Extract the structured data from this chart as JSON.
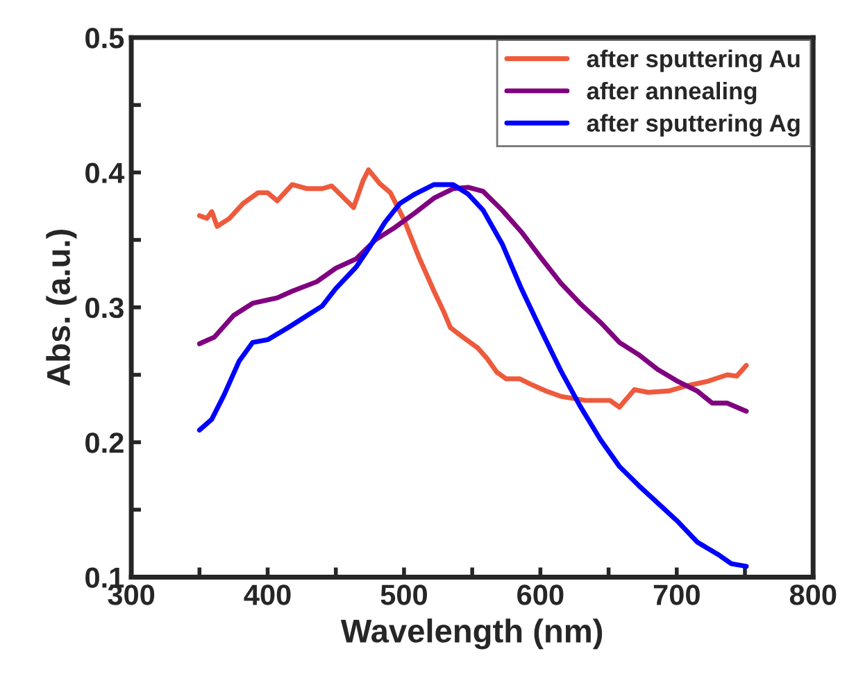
{
  "chart_data": {
    "type": "line",
    "xlabel": "Wavelength (nm)",
    "ylabel": "Abs. (a.u.)",
    "xlim": [
      300,
      800
    ],
    "ylim": [
      0.1,
      0.5
    ],
    "xticks": [
      300,
      {
        "value": 350,
        "label": null
      },
      400,
      {
        "value": 450,
        "label": null
      },
      500,
      {
        "value": 550,
        "label": null
      },
      600,
      {
        "value": 650,
        "label": null
      },
      700,
      {
        "value": 750,
        "label": null
      },
      800
    ],
    "yticks": [
      0.1,
      {
        "value": 0.15,
        "label": null
      },
      0.2,
      {
        "value": 0.25,
        "label": null
      },
      0.3,
      {
        "value": 0.35,
        "label": null
      },
      0.4,
      {
        "value": 0.45,
        "label": null
      },
      0.5
    ],
    "grid": false,
    "legend": "top right",
    "line_style": "solid",
    "series": [
      {
        "name": "after sputtering Au",
        "color": "#ee5a3c",
        "x": [
          350,
          355.5,
          359,
          363,
          372,
          382,
          393,
          400,
          407,
          418,
          429,
          440,
          447,
          456,
          463,
          470,
          474,
          482,
          490,
          500,
          511,
          522,
          529,
          534,
          543,
          554,
          561,
          568,
          575,
          585,
          593,
          604,
          615,
          633,
          651,
          658,
          669,
          679,
          694,
          708,
          722,
          737,
          744,
          751
        ],
        "values": [
          0.368,
          0.366,
          0.371,
          0.36,
          0.366,
          0.377,
          0.385,
          0.385,
          0.379,
          0.391,
          0.388,
          0.388,
          0.39,
          0.381,
          0.374,
          0.394,
          0.402,
          0.392,
          0.385,
          0.365,
          0.337,
          0.312,
          0.297,
          0.285,
          0.278,
          0.27,
          0.262,
          0.252,
          0.247,
          0.247,
          0.243,
          0.238,
          0.234,
          0.231,
          0.231,
          0.226,
          0.239,
          0.237,
          0.238,
          0.242,
          0.245,
          0.25,
          0.249,
          0.257
        ]
      },
      {
        "name": "after annealing",
        "color": "#800080",
        "x": [
          350,
          361,
          375,
          389,
          407,
          418,
          436,
          450,
          465,
          479,
          493,
          508,
          522,
          536,
          547,
          558,
          572,
          586,
          601,
          615,
          629,
          644,
          658,
          672,
          686,
          701,
          715,
          726,
          737,
          751
        ],
        "values": [
          0.273,
          0.278,
          0.294,
          0.303,
          0.307,
          0.312,
          0.319,
          0.329,
          0.336,
          0.35,
          0.359,
          0.37,
          0.381,
          0.388,
          0.389,
          0.386,
          0.372,
          0.356,
          0.336,
          0.318,
          0.303,
          0.289,
          0.274,
          0.265,
          0.254,
          0.245,
          0.238,
          0.229,
          0.229,
          0.223
        ]
      },
      {
        "name": "after sputtering Ag",
        "color": "#0000ff",
        "x": [
          350,
          359,
          368,
          379,
          389,
          400,
          415,
          429,
          440,
          450,
          465,
          475,
          486,
          497,
          508,
          522,
          536,
          547,
          558,
          572,
          586,
          601,
          615,
          629,
          644,
          658,
          672,
          686,
          701,
          715,
          730,
          740,
          751
        ],
        "values": [
          0.209,
          0.217,
          0.235,
          0.26,
          0.274,
          0.276,
          0.285,
          0.294,
          0.301,
          0.314,
          0.33,
          0.345,
          0.363,
          0.377,
          0.384,
          0.391,
          0.391,
          0.384,
          0.372,
          0.347,
          0.314,
          0.282,
          0.253,
          0.227,
          0.202,
          0.182,
          0.168,
          0.155,
          0.141,
          0.126,
          0.117,
          0.11,
          0.108
        ]
      }
    ]
  }
}
